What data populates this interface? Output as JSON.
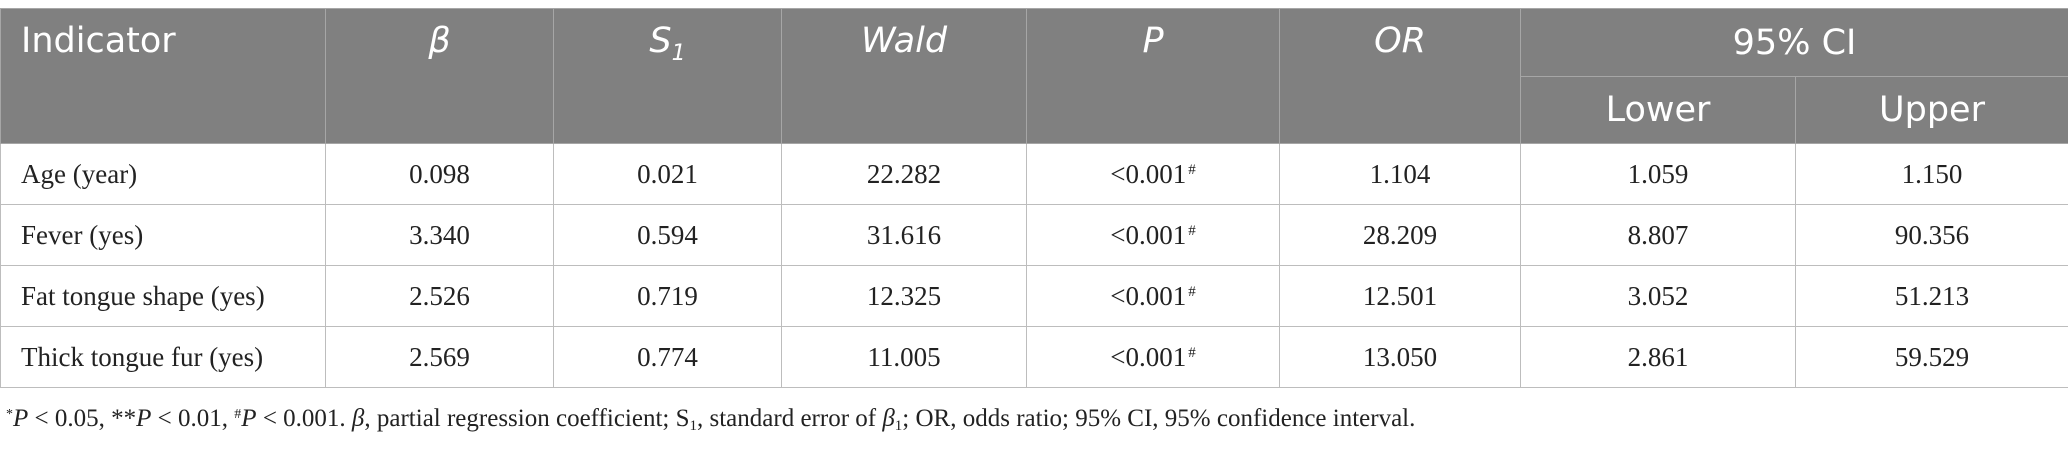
{
  "header": {
    "indicator": "Indicator",
    "beta": "β",
    "s_base": "S",
    "s_sub": "1",
    "wald": "Wald",
    "p": "P",
    "or": "OR",
    "ci": "95% CI",
    "lower": "Lower",
    "upper": "Upper"
  },
  "rows": [
    {
      "indicator": "Age (year)",
      "beta": "0.098",
      "s1": "0.021",
      "wald": "22.282",
      "p": "<0.001",
      "p_mark": "#",
      "or": "1.104",
      "lower": "1.059",
      "upper": "1.150"
    },
    {
      "indicator": "Fever (yes)",
      "beta": "3.340",
      "s1": "0.594",
      "wald": "31.616",
      "p": "<0.001",
      "p_mark": "#",
      "or": "28.209",
      "lower": "8.807",
      "upper": "90.356"
    },
    {
      "indicator": "Fat tongue shape (yes)",
      "beta": "2.526",
      "s1": "0.719",
      "wald": "12.325",
      "p": "<0.001",
      "p_mark": "#",
      "or": "12.501",
      "lower": "3.052",
      "upper": "51.213"
    },
    {
      "indicator": "Thick tongue fur (yes)",
      "beta": "2.569",
      "s1": "0.774",
      "wald": "11.005",
      "p": "<0.001",
      "p_mark": "#",
      "or": "13.050",
      "lower": "2.861",
      "upper": "59.529"
    }
  ],
  "footnote": {
    "m1": "*",
    "p1": "P",
    "t1": " < 0.05, **",
    "p2": "P",
    "t2": " < 0.01, ",
    "m3": "#",
    "p3": "P",
    "t3": " < 0.001. ",
    "beta": "β",
    "t4": ", partial regression coefficient; S",
    "s_sub": "1",
    "t5": ", standard error of ",
    "beta2": "β",
    "b_sub": "1",
    "t6": "; OR, odds ratio; 95% CI, 95% confidence interval."
  }
}
